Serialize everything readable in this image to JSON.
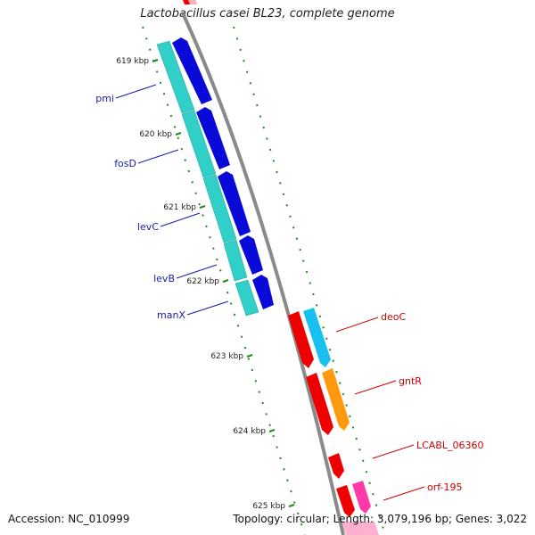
{
  "title": "Lactobacillus casei BL23, complete genome",
  "footer": {
    "accession": "Accession: NC_010999",
    "topology": "Topology: circular; Length: 3,079,196 bp; Genes: 3,022"
  },
  "colors": {
    "backbone": "#8a8a8a",
    "tick": "#1e8a1e",
    "left_gene_label": "#1a1aa8",
    "right_gene_label": "#d00000",
    "dark_blue": "#0a0ad8",
    "cyan_band": "#30d0c8",
    "red": "#ee0000",
    "sky_blue": "#18c0f0",
    "orange": "#ff9a10",
    "magenta": "#ff3aa8",
    "pink": "#ffb0d0"
  },
  "kbp_ticks": [
    "619 kbp",
    "620 kbp",
    "621 kbp",
    "622 kbp",
    "623 kbp",
    "624 kbp",
    "625 kbp"
  ],
  "genes_left": [
    "pmi",
    "fosD",
    "levC",
    "levB",
    "manX"
  ],
  "genes_right": [
    "deoC",
    "gntR",
    "LCABL_06360",
    "orf-195"
  ]
}
